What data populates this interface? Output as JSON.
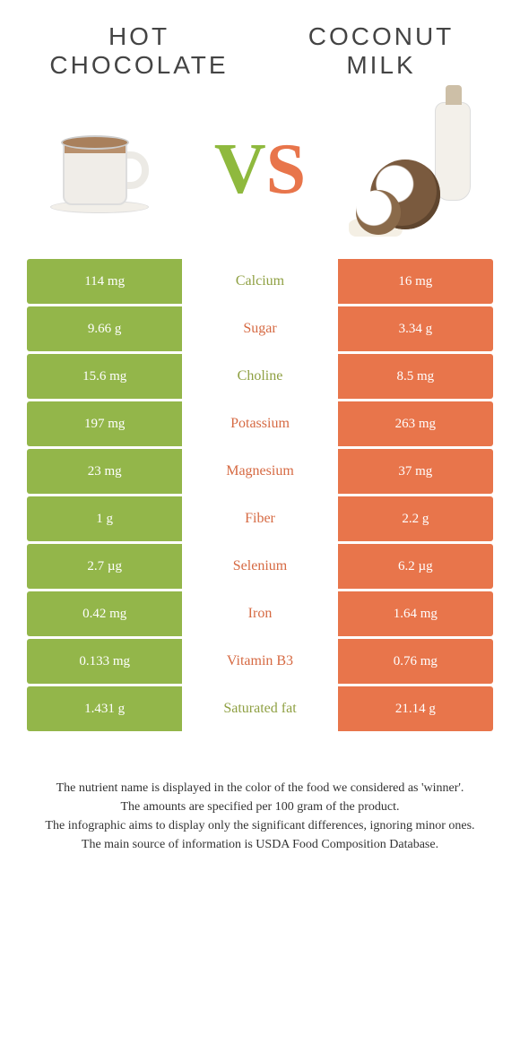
{
  "titles": {
    "left": "Hot chocolate",
    "right": "Coconut milk"
  },
  "vs": {
    "v": "V",
    "s": "S"
  },
  "colors": {
    "left": "#93b64a",
    "right": "#e8754b",
    "nutrient_left": "#8fa043",
    "nutrient_right": "#d66a43"
  },
  "rows": [
    {
      "nutrient": "Calcium",
      "left": "114 mg",
      "right": "16 mg",
      "winner": "left"
    },
    {
      "nutrient": "Sugar",
      "left": "9.66 g",
      "right": "3.34 g",
      "winner": "right"
    },
    {
      "nutrient": "Choline",
      "left": "15.6 mg",
      "right": "8.5 mg",
      "winner": "left"
    },
    {
      "nutrient": "Potassium",
      "left": "197 mg",
      "right": "263 mg",
      "winner": "right"
    },
    {
      "nutrient": "Magnesium",
      "left": "23 mg",
      "right": "37 mg",
      "winner": "right"
    },
    {
      "nutrient": "Fiber",
      "left": "1 g",
      "right": "2.2 g",
      "winner": "right"
    },
    {
      "nutrient": "Selenium",
      "left": "2.7 µg",
      "right": "6.2 µg",
      "winner": "right"
    },
    {
      "nutrient": "Iron",
      "left": "0.42 mg",
      "right": "1.64 mg",
      "winner": "right"
    },
    {
      "nutrient": "Vitamin B3",
      "left": "0.133 mg",
      "right": "0.76 mg",
      "winner": "right"
    },
    {
      "nutrient": "Saturated fat",
      "left": "1.431 g",
      "right": "21.14 g",
      "winner": "left"
    }
  ],
  "footer": [
    "The nutrient name is displayed in the color of the food we considered as 'winner'.",
    "The amounts are specified per 100 gram of the product.",
    "The infographic aims to display only the significant differences, ignoring minor ones.",
    "The main source of information is USDA Food Composition Database."
  ]
}
